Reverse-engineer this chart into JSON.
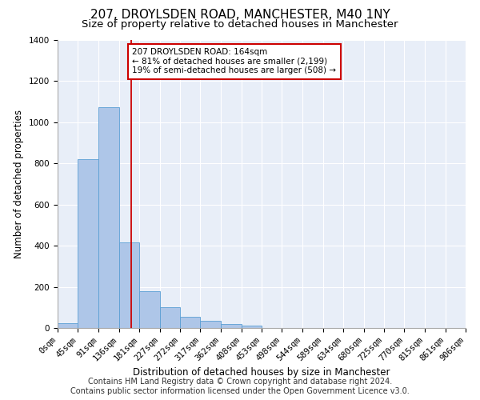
{
  "title": "207, DROYLSDEN ROAD, MANCHESTER, M40 1NY",
  "subtitle": "Size of property relative to detached houses in Manchester",
  "xlabel": "Distribution of detached houses by size in Manchester",
  "ylabel": "Number of detached properties",
  "footer_line1": "Contains HM Land Registry data © Crown copyright and database right 2024.",
  "footer_line2": "Contains public sector information licensed under the Open Government Licence v3.0.",
  "bar_values": [
    25,
    820,
    1075,
    415,
    180,
    103,
    53,
    35,
    20,
    13,
    0,
    0,
    0,
    0,
    0,
    0,
    0,
    0,
    0,
    0
  ],
  "bin_edges": [
    0,
    45,
    91,
    136,
    181,
    227,
    272,
    317,
    362,
    408,
    453,
    498,
    544,
    589,
    634,
    680,
    725,
    770,
    815,
    861,
    906
  ],
  "bin_labels": [
    "0sqm",
    "45sqm",
    "91sqm",
    "136sqm",
    "181sqm",
    "227sqm",
    "272sqm",
    "317sqm",
    "362sqm",
    "408sqm",
    "453sqm",
    "498sqm",
    "544sqm",
    "589sqm",
    "634sqm",
    "680sqm",
    "725sqm",
    "770sqm",
    "815sqm",
    "861sqm",
    "906sqm"
  ],
  "bar_color": "#aec6e8",
  "bar_edge_color": "#5a9fd4",
  "vline_x": 164,
  "vline_color": "#cc0000",
  "annotation_text": "207 DROYLSDEN ROAD: 164sqm\n← 81% of detached houses are smaller (2,199)\n19% of semi-detached houses are larger (508) →",
  "annotation_box_color": "#ffffff",
  "annotation_box_edge": "#cc0000",
  "ylim": [
    0,
    1400
  ],
  "yticks": [
    0,
    200,
    400,
    600,
    800,
    1000,
    1200,
    1400
  ],
  "bg_color": "#e8eef8",
  "title_fontsize": 11,
  "subtitle_fontsize": 9.5,
  "axis_label_fontsize": 8.5,
  "tick_fontsize": 7.5,
  "footer_fontsize": 7,
  "annotation_fontsize": 7.5
}
